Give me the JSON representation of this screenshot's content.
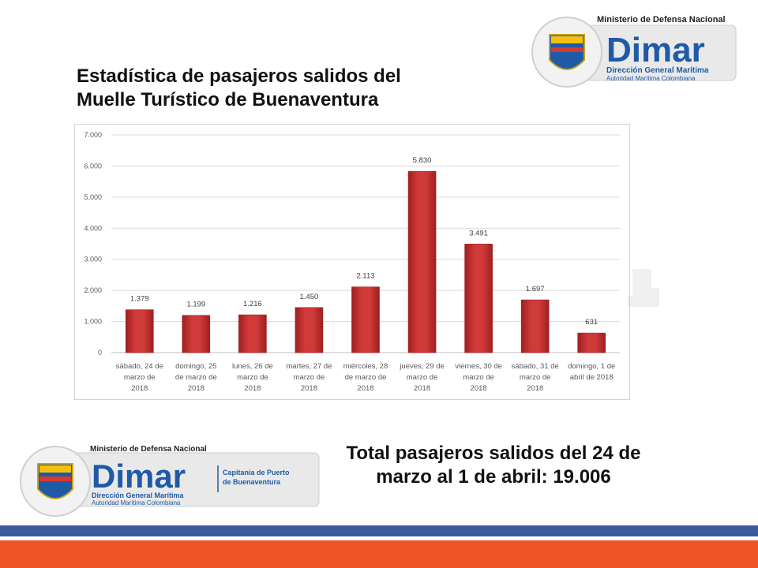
{
  "title": "Estadística de pasajeros salidos del Muelle Turístico de Buenaventura",
  "total_text": "Total pasajeros salidos del 24 de marzo al 1 de abril: 19.006",
  "logo_top": {
    "ministry": "Ministerio de Defensa Nacional",
    "brand": "Dimar",
    "line1": "Dirección General Marítima",
    "line2": "Autoridad Marítima Colombiana"
  },
  "logo_bottom": {
    "ministry": "Ministerio de Defensa Nacional",
    "brand": "Dimar",
    "line1": "Dirección General Marítima",
    "line2": "Autoridad Marítima Colombiana",
    "capitania_1": "Capitanía de Puerto",
    "capitania_2": "de Buenaventura"
  },
  "colors": {
    "bar": "#d03a38",
    "bar_dark": "#9e1f1f",
    "band_blue": "#3c5aa0",
    "band_orange": "#ee5428",
    "brand_blue": "#1e5aa8"
  },
  "chart_data": {
    "type": "bar",
    "categories": [
      [
        "sábado, 24 de",
        "marzo de",
        "2018"
      ],
      [
        "domingo, 25",
        "de marzo de",
        "2018"
      ],
      [
        "lunes, 26 de",
        "marzo de",
        "2018"
      ],
      [
        "martes, 27 de",
        "marzo de",
        "2018"
      ],
      [
        "miércoles, 28",
        "de marzo de",
        "2018"
      ],
      [
        "jueves, 29 de",
        "marzo de",
        "2018"
      ],
      [
        "viernes, 30 de",
        "marzo de",
        "2018"
      ],
      [
        "sábado, 31 de",
        "marzo de",
        "2018"
      ],
      [
        "domingo, 1 de",
        "abril de 2018"
      ]
    ],
    "values": [
      1379,
      1199,
      1216,
      1450,
      2113,
      5830,
      3491,
      1697,
      631
    ],
    "value_labels": [
      "1.379",
      "1.199",
      "1.216",
      "1.450",
      "2.113",
      "5.830",
      "3.491",
      "1.697",
      "631"
    ],
    "yticks": [
      0,
      1000,
      2000,
      3000,
      4000,
      5000,
      6000,
      7000
    ],
    "ytick_labels": [
      "0",
      "1.000",
      "2.000",
      "3.000",
      "4.000",
      "5.000",
      "6.000",
      "7.000"
    ],
    "ylim": [
      0,
      7000
    ],
    "grid": true,
    "legend": "none"
  }
}
